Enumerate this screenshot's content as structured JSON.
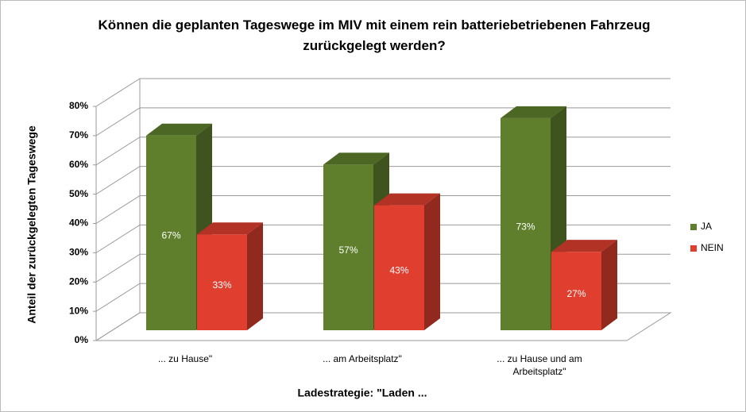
{
  "chart_data": {
    "type": "bar3d",
    "title": "Können die geplanten Tageswege im MIV mit einem rein batteriebetriebenen Fahrzeug zurückgelegt werden?",
    "y_label": "Anteil der zurückgelegten Tageswege",
    "x_label": "Ladestrategie: \"Laden ...",
    "categories": [
      "... zu Hause\"",
      "... am Arbeitsplatz\"",
      "... zu Hause und am Arbeitsplatz\""
    ],
    "series": [
      {
        "name": "JA",
        "color": "#5f7f2c",
        "values": [
          67,
          57,
          73
        ],
        "value_labels": [
          "67%",
          "57%",
          "73%"
        ]
      },
      {
        "name": "NEIN",
        "color": "#e03f30",
        "values": [
          33,
          43,
          27
        ],
        "value_labels": [
          "33%",
          "43%",
          "27%"
        ]
      }
    ],
    "ylim": [
      0,
      80
    ],
    "yticks": [
      {
        "value": 0,
        "label": "0%"
      },
      {
        "value": 10,
        "label": "10%"
      },
      {
        "value": 20,
        "label": "20%"
      },
      {
        "value": 30,
        "label": "30%"
      },
      {
        "value": 40,
        "label": "40%"
      },
      {
        "value": 50,
        "label": "50%"
      },
      {
        "value": 60,
        "label": "60%"
      },
      {
        "value": 70,
        "label": "70%"
      },
      {
        "value": 80,
        "label": "80%"
      }
    ],
    "grid": true,
    "legend": "right"
  }
}
